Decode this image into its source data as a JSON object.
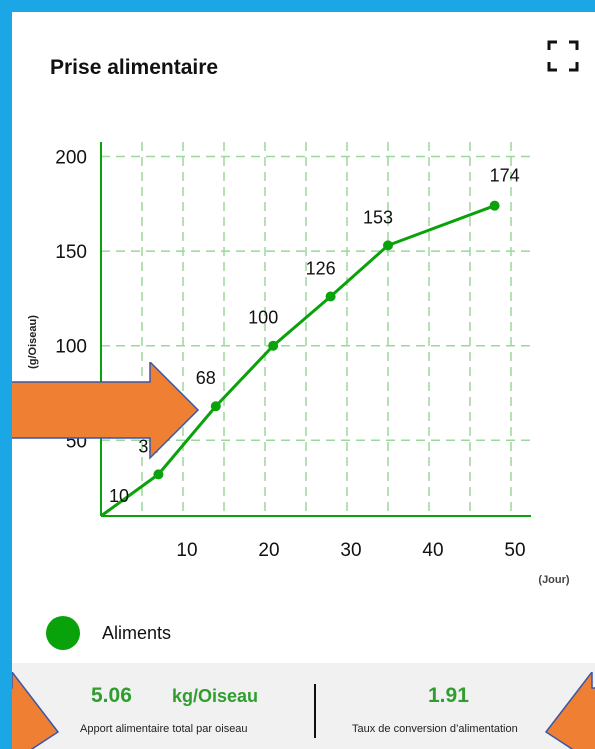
{
  "header": {
    "title": "Prise alimentaire"
  },
  "icons": {
    "fullscreen": "fullscreen-corners-icon"
  },
  "colors": {
    "frame": "#1ba7e6",
    "series": "#0aa20a",
    "grid": "#9bd89b",
    "arrow": "#ef8033",
    "value_text": "#2f9e2f"
  },
  "chart_data": {
    "type": "line",
    "xlabel": "(Jour)",
    "ylabel": "(g/Oiseau)",
    "xlim": [
      0,
      55
    ],
    "ylim": [
      10,
      205
    ],
    "xticks": [
      10,
      20,
      30,
      40,
      50
    ],
    "yticks": [
      50,
      100,
      150,
      200
    ],
    "grid": true,
    "series": [
      {
        "name": "Aliments",
        "x": [
          0,
          7,
          14,
          21,
          28,
          35,
          48
        ],
        "y": [
          10,
          32,
          68,
          100,
          126,
          153,
          174
        ]
      }
    ],
    "point_labels": [
      "10",
      "32",
      "68",
      "100",
      "126",
      "153",
      "174"
    ]
  },
  "legend": {
    "label": "Aliments"
  },
  "stats": {
    "total_value": "5.06",
    "total_unit": "kg/Oiseau",
    "total_caption": "Apport alimentaire total par oiseau",
    "fcr_value": "1.91",
    "fcr_caption": "Taux de conversion d’alimentation"
  }
}
